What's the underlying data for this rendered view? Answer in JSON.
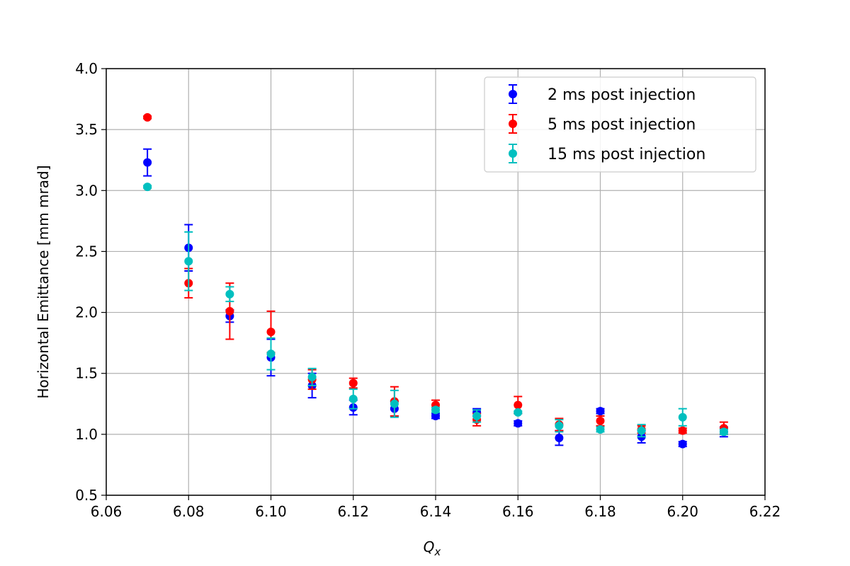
{
  "chart_data": {
    "type": "scatter",
    "xlabel_main": "Q",
    "xlabel_sub": "x",
    "ylabel": "Horizontal Emittance [mm mrad]",
    "xlim": [
      6.06,
      6.22
    ],
    "ylim": [
      0.5,
      4.0
    ],
    "xticks": [
      "6.06",
      "6.08",
      "6.10",
      "6.12",
      "6.14",
      "6.16",
      "6.18",
      "6.20",
      "6.22"
    ],
    "yticks": [
      "0.5",
      "1.0",
      "1.5",
      "2.0",
      "2.5",
      "3.0",
      "3.5",
      "4.0"
    ],
    "grid": true,
    "legend_position": "top-right",
    "error_bars": true,
    "series": [
      {
        "name": "2 ms post injection",
        "color": "#0000ff",
        "points": [
          {
            "x": 6.07,
            "y": 3.23,
            "err": 0.11
          },
          {
            "x": 6.08,
            "y": 2.53,
            "err": 0.19
          },
          {
            "x": 6.09,
            "y": 1.97,
            "err": 0.05
          },
          {
            "x": 6.1,
            "y": 1.63,
            "err": 0.15
          },
          {
            "x": 6.11,
            "y": 1.4,
            "err": 0.1
          },
          {
            "x": 6.12,
            "y": 1.22,
            "err": 0.06
          },
          {
            "x": 6.13,
            "y": 1.21,
            "err": 0.06
          },
          {
            "x": 6.14,
            "y": 1.15,
            "err": 0.02
          },
          {
            "x": 6.15,
            "y": 1.18,
            "err": 0.03
          },
          {
            "x": 6.16,
            "y": 1.09,
            "err": 0.02
          },
          {
            "x": 6.17,
            "y": 0.97,
            "err": 0.06
          },
          {
            "x": 6.18,
            "y": 1.19,
            "err": 0.02
          },
          {
            "x": 6.19,
            "y": 0.98,
            "err": 0.05
          },
          {
            "x": 6.2,
            "y": 0.92,
            "err": 0.02
          },
          {
            "x": 6.21,
            "y": 1.02,
            "err": 0.04
          }
        ]
      },
      {
        "name": "5 ms post injection",
        "color": "#ff0000",
        "points": [
          {
            "x": 6.07,
            "y": 3.6,
            "err": 0.01
          },
          {
            "x": 6.08,
            "y": 2.24,
            "err": 0.12
          },
          {
            "x": 6.09,
            "y": 2.01,
            "err": 0.23
          },
          {
            "x": 6.1,
            "y": 1.84,
            "err": 0.17
          },
          {
            "x": 6.11,
            "y": 1.45,
            "err": 0.08
          },
          {
            "x": 6.12,
            "y": 1.42,
            "err": 0.04
          },
          {
            "x": 6.13,
            "y": 1.27,
            "err": 0.12
          },
          {
            "x": 6.14,
            "y": 1.24,
            "err": 0.04
          },
          {
            "x": 6.15,
            "y": 1.12,
            "err": 0.05
          },
          {
            "x": 6.16,
            "y": 1.24,
            "err": 0.07
          },
          {
            "x": 6.17,
            "y": 1.08,
            "err": 0.05
          },
          {
            "x": 6.18,
            "y": 1.11,
            "err": 0.04
          },
          {
            "x": 6.19,
            "y": 1.04,
            "err": 0.03
          },
          {
            "x": 6.2,
            "y": 1.03,
            "err": 0.02
          },
          {
            "x": 6.21,
            "y": 1.05,
            "err": 0.05
          }
        ]
      },
      {
        "name": "15 ms post injection",
        "color": "#00bfbf",
        "points": [
          {
            "x": 6.07,
            "y": 3.03,
            "err": 0.01
          },
          {
            "x": 6.08,
            "y": 2.42,
            "err": 0.24
          },
          {
            "x": 6.09,
            "y": 2.15,
            "err": 0.06
          },
          {
            "x": 6.1,
            "y": 1.66,
            "err": 0.13
          },
          {
            "x": 6.11,
            "y": 1.47,
            "err": 0.07
          },
          {
            "x": 6.12,
            "y": 1.29,
            "err": 0.08
          },
          {
            "x": 6.13,
            "y": 1.25,
            "err": 0.11
          },
          {
            "x": 6.14,
            "y": 1.2,
            "err": 0.02
          },
          {
            "x": 6.15,
            "y": 1.15,
            "err": 0.05
          },
          {
            "x": 6.16,
            "y": 1.18,
            "err": 0.01
          },
          {
            "x": 6.17,
            "y": 1.07,
            "err": 0.05
          },
          {
            "x": 6.18,
            "y": 1.04,
            "err": 0.02
          },
          {
            "x": 6.19,
            "y": 1.03,
            "err": 0.05
          },
          {
            "x": 6.2,
            "y": 1.14,
            "err": 0.07
          },
          {
            "x": 6.21,
            "y": 1.02,
            "err": 0.02
          }
        ]
      }
    ]
  }
}
